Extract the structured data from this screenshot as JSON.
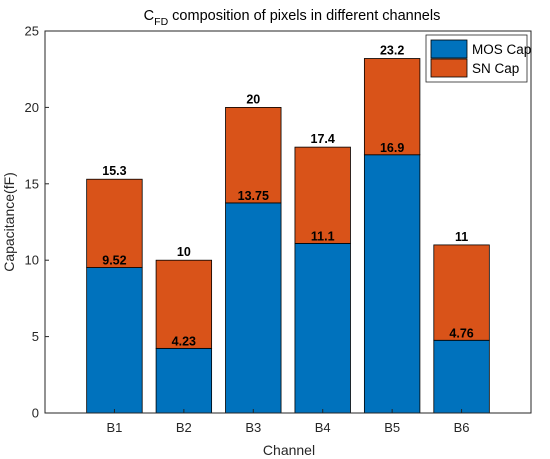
{
  "chart_data": {
    "type": "bar",
    "stacked": true,
    "title_main": "C",
    "title_sub": "FD",
    "title_rest": " composition of pixels in different channels",
    "xlabel": "Channel",
    "ylabel": "Capacitance(fF)",
    "categories": [
      "B1",
      "B2",
      "B3",
      "B4",
      "B5",
      "B6"
    ],
    "ylim": [
      0,
      25
    ],
    "yticks": [
      "0",
      "5",
      "10",
      "15",
      "20",
      "25"
    ],
    "series": [
      {
        "name": "MOS Cap",
        "color": "#0072BD",
        "values": [
          9.52,
          4.23,
          13.75,
          11.1,
          16.9,
          4.76
        ]
      },
      {
        "name": "SN Cap",
        "color": "#D95319",
        "values": [
          5.78,
          5.77,
          6.25,
          6.3,
          6.3,
          6.24
        ]
      }
    ],
    "segment_labels": [
      "9.52",
      "4.23",
      "13.75",
      "11.1",
      "16.9",
      "4.76"
    ],
    "total_labels": [
      "15.3",
      "10",
      "20",
      "17.4",
      "23.2",
      "11"
    ],
    "legend_position": "top-right",
    "grid": false
  }
}
